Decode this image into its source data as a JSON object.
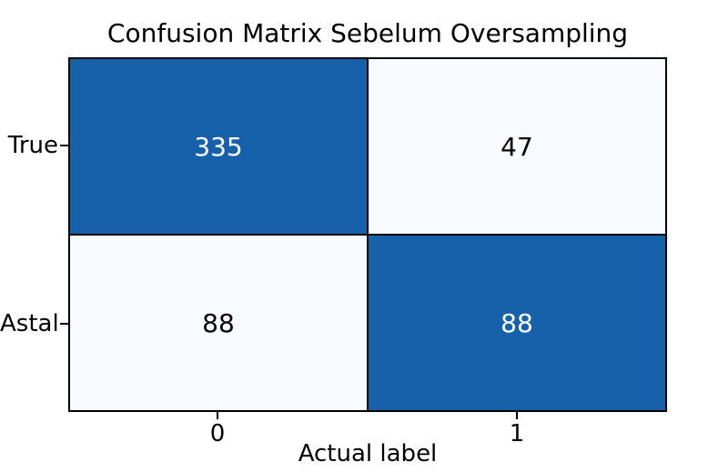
{
  "chart_data": {
    "type": "heatmap",
    "title": "Confusion Matrix Sebelum Oversampling",
    "xlabel": "Actual label",
    "ylabel": "",
    "x_tick_labels": [
      "0",
      "1"
    ],
    "y_tick_labels": [
      "True",
      "Astal"
    ],
    "matrix": [
      [
        335,
        47
      ],
      [
        88,
        88
      ]
    ],
    "cell_is_dark": [
      [
        true,
        false
      ],
      [
        false,
        true
      ]
    ],
    "colormap": "Blues",
    "grid": "off",
    "legend": "none",
    "colors": {
      "cell_high": "#1661a9",
      "cell_low": "#f7fafe",
      "value_on_dark": "#ffffff",
      "value_on_light": "#000000",
      "axes": "#000000",
      "background": "#ffffff"
    }
  }
}
